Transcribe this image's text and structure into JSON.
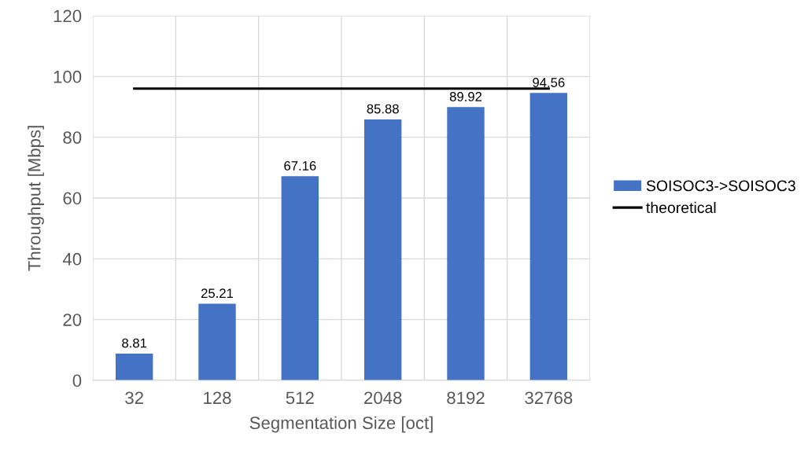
{
  "chart_data": {
    "type": "bar",
    "xlabel": "Segmentation Size [oct]",
    "ylabel": "Throughput [Mbps]",
    "categories": [
      "32",
      "128",
      "512",
      "2048",
      "8192",
      "32768"
    ],
    "series": [
      {
        "name": "SOISOC3->SOISOC3",
        "color": "#4472c4",
        "values": [
          8.81,
          25.21,
          67.16,
          85.88,
          89.92,
          94.56
        ],
        "data_labels": true
      },
      {
        "name": "theoretical",
        "type": "line",
        "color": "#000000",
        "values": [
          96,
          96,
          96,
          96,
          96,
          96
        ],
        "marker": "none",
        "line_style": "solid"
      }
    ],
    "ylim": [
      0,
      120
    ],
    "yticks": [
      0,
      20,
      40,
      60,
      80,
      100,
      120
    ],
    "grid": true,
    "legend": "right"
  }
}
